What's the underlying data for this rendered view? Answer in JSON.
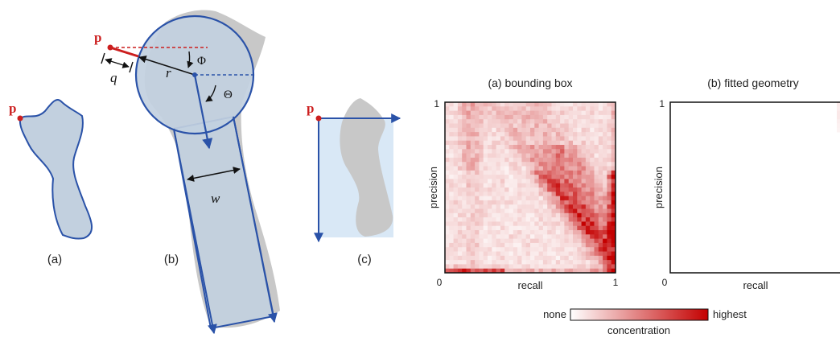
{
  "diagram": {
    "point_label": "p",
    "labels": {
      "q": "q",
      "r": "r",
      "phi": "Φ",
      "theta": "Θ",
      "w": "w"
    },
    "captions": {
      "a": "(a)",
      "b": "(b)",
      "c": "(c)"
    },
    "colors": {
      "shape_gray": "#c8c8c8",
      "fit_fill": "#c2d0df",
      "fit_stroke": "#2a52a8",
      "accent_red": "#cc1f1f",
      "box_fill": "#d9e8f6"
    }
  },
  "chart_data": [
    {
      "type": "heatmap",
      "title": "(a) bounding box",
      "xlabel": "recall",
      "ylabel": "precision",
      "xlim": [
        0,
        1
      ],
      "ylim": [
        0,
        1
      ],
      "tick_labels": {
        "x_min": "0",
        "x_max": "1",
        "y_max": "1"
      },
      "grid_size": 40,
      "description_of_density": "diffuse across grid, denser band along lower-right diagonal and near recall=1"
    },
    {
      "type": "heatmap",
      "title": "(b) fitted geometry",
      "xlabel": "recall",
      "ylabel": "precision",
      "xlim": [
        0,
        1
      ],
      "ylim": [
        0,
        1
      ],
      "tick_labels": {
        "x_min": "0",
        "y_max": "1"
      },
      "grid_size": 40,
      "description_of_density": "concentrated near top-right corner (high precision, high recall)"
    }
  ],
  "colorbar": {
    "min_label": "none",
    "max_label": "highest",
    "title": "concentration",
    "color_low": "#ffffff",
    "color_high": "#c40000"
  }
}
